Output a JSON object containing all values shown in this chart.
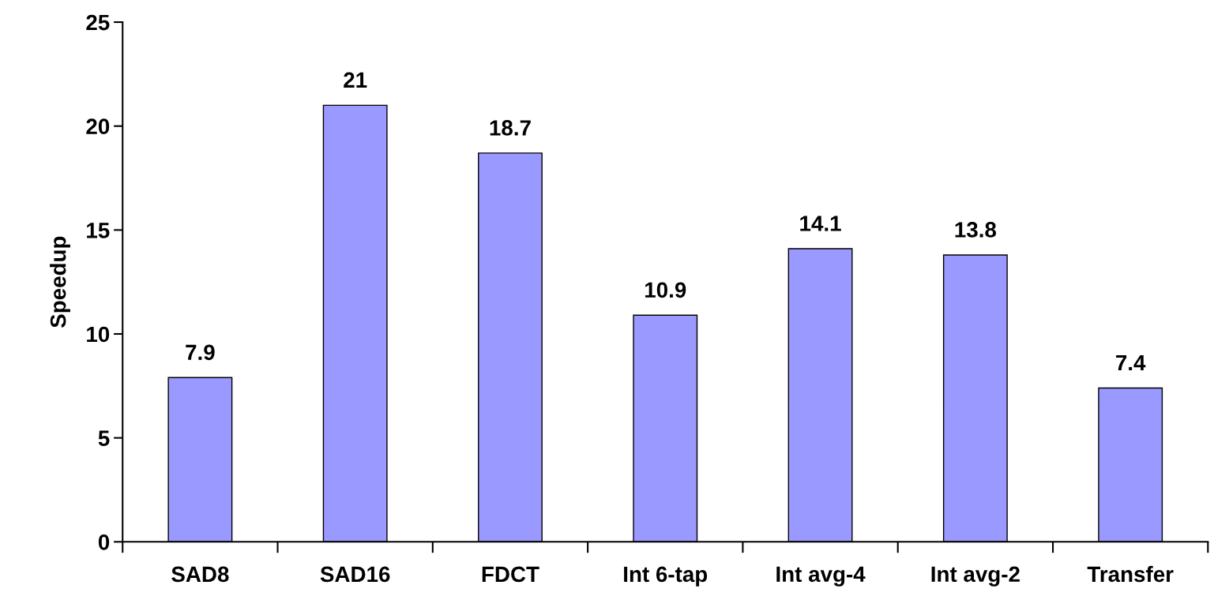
{
  "chart_data": {
    "type": "bar",
    "ylabel": "Speedup",
    "categories": [
      "SAD8",
      "SAD16",
      "FDCT",
      "Int 6-tap",
      "Int avg-4",
      "Int avg-2",
      "Transfer"
    ],
    "values": [
      7.9,
      21,
      18.7,
      10.9,
      14.1,
      13.8,
      7.4
    ],
    "color": "#9999ff",
    "ylim": [
      0,
      25
    ],
    "yticks": [
      0,
      5,
      10,
      15,
      20,
      25
    ],
    "data_labels": true,
    "grid": false,
    "legend": false
  }
}
